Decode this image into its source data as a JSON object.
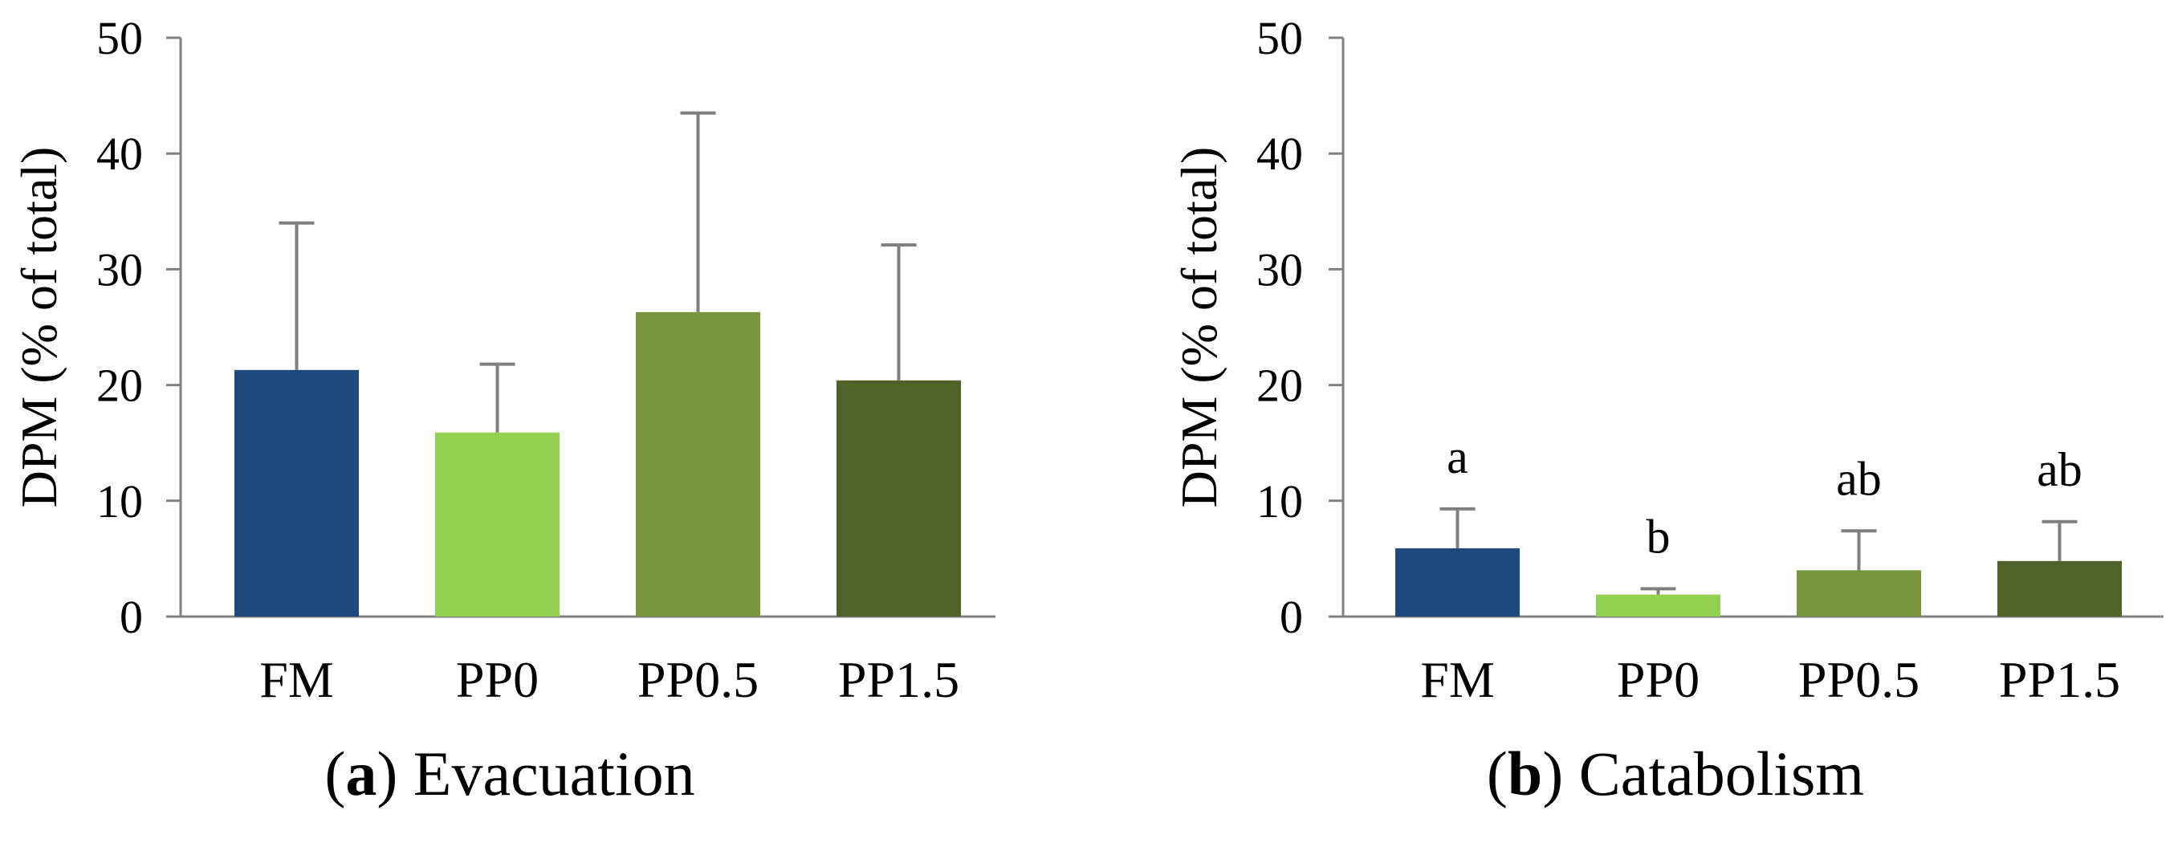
{
  "chart_data": [
    {
      "type": "bar",
      "panel_letter": "a",
      "panel_title": "Evacuation",
      "ylabel": "DPM (% of total)",
      "xlabel": "",
      "ylim": [
        0,
        50
      ],
      "yticks": [
        0,
        10,
        20,
        30,
        40,
        50
      ],
      "categories": [
        "FM",
        "PP0",
        "PP0.5",
        "PP1.5"
      ],
      "values": [
        21.3,
        15.9,
        26.3,
        20.4
      ],
      "error_upper": [
        12.7,
        5.9,
        17.2,
        11.7
      ],
      "colors": [
        "#1F497D",
        "#92D050",
        "#77933C",
        "#4F6228"
      ],
      "annotations": [],
      "grid": false
    },
    {
      "type": "bar",
      "panel_letter": "b",
      "panel_title": "Catabolism",
      "ylabel": "DPM (% of total)",
      "xlabel": "",
      "ylim": [
        0,
        50
      ],
      "yticks": [
        0,
        10,
        20,
        30,
        40,
        50
      ],
      "categories": [
        "FM",
        "PP0",
        "PP0.5",
        "PP1.5"
      ],
      "values": [
        5.9,
        1.9,
        4.0,
        4.8
      ],
      "error_upper": [
        3.4,
        0.5,
        3.4,
        3.4
      ],
      "colors": [
        "#1F497D",
        "#92D050",
        "#77933C",
        "#4F6228"
      ],
      "annotations": [
        "a",
        "b",
        "ab",
        "ab"
      ],
      "grid": false
    }
  ]
}
